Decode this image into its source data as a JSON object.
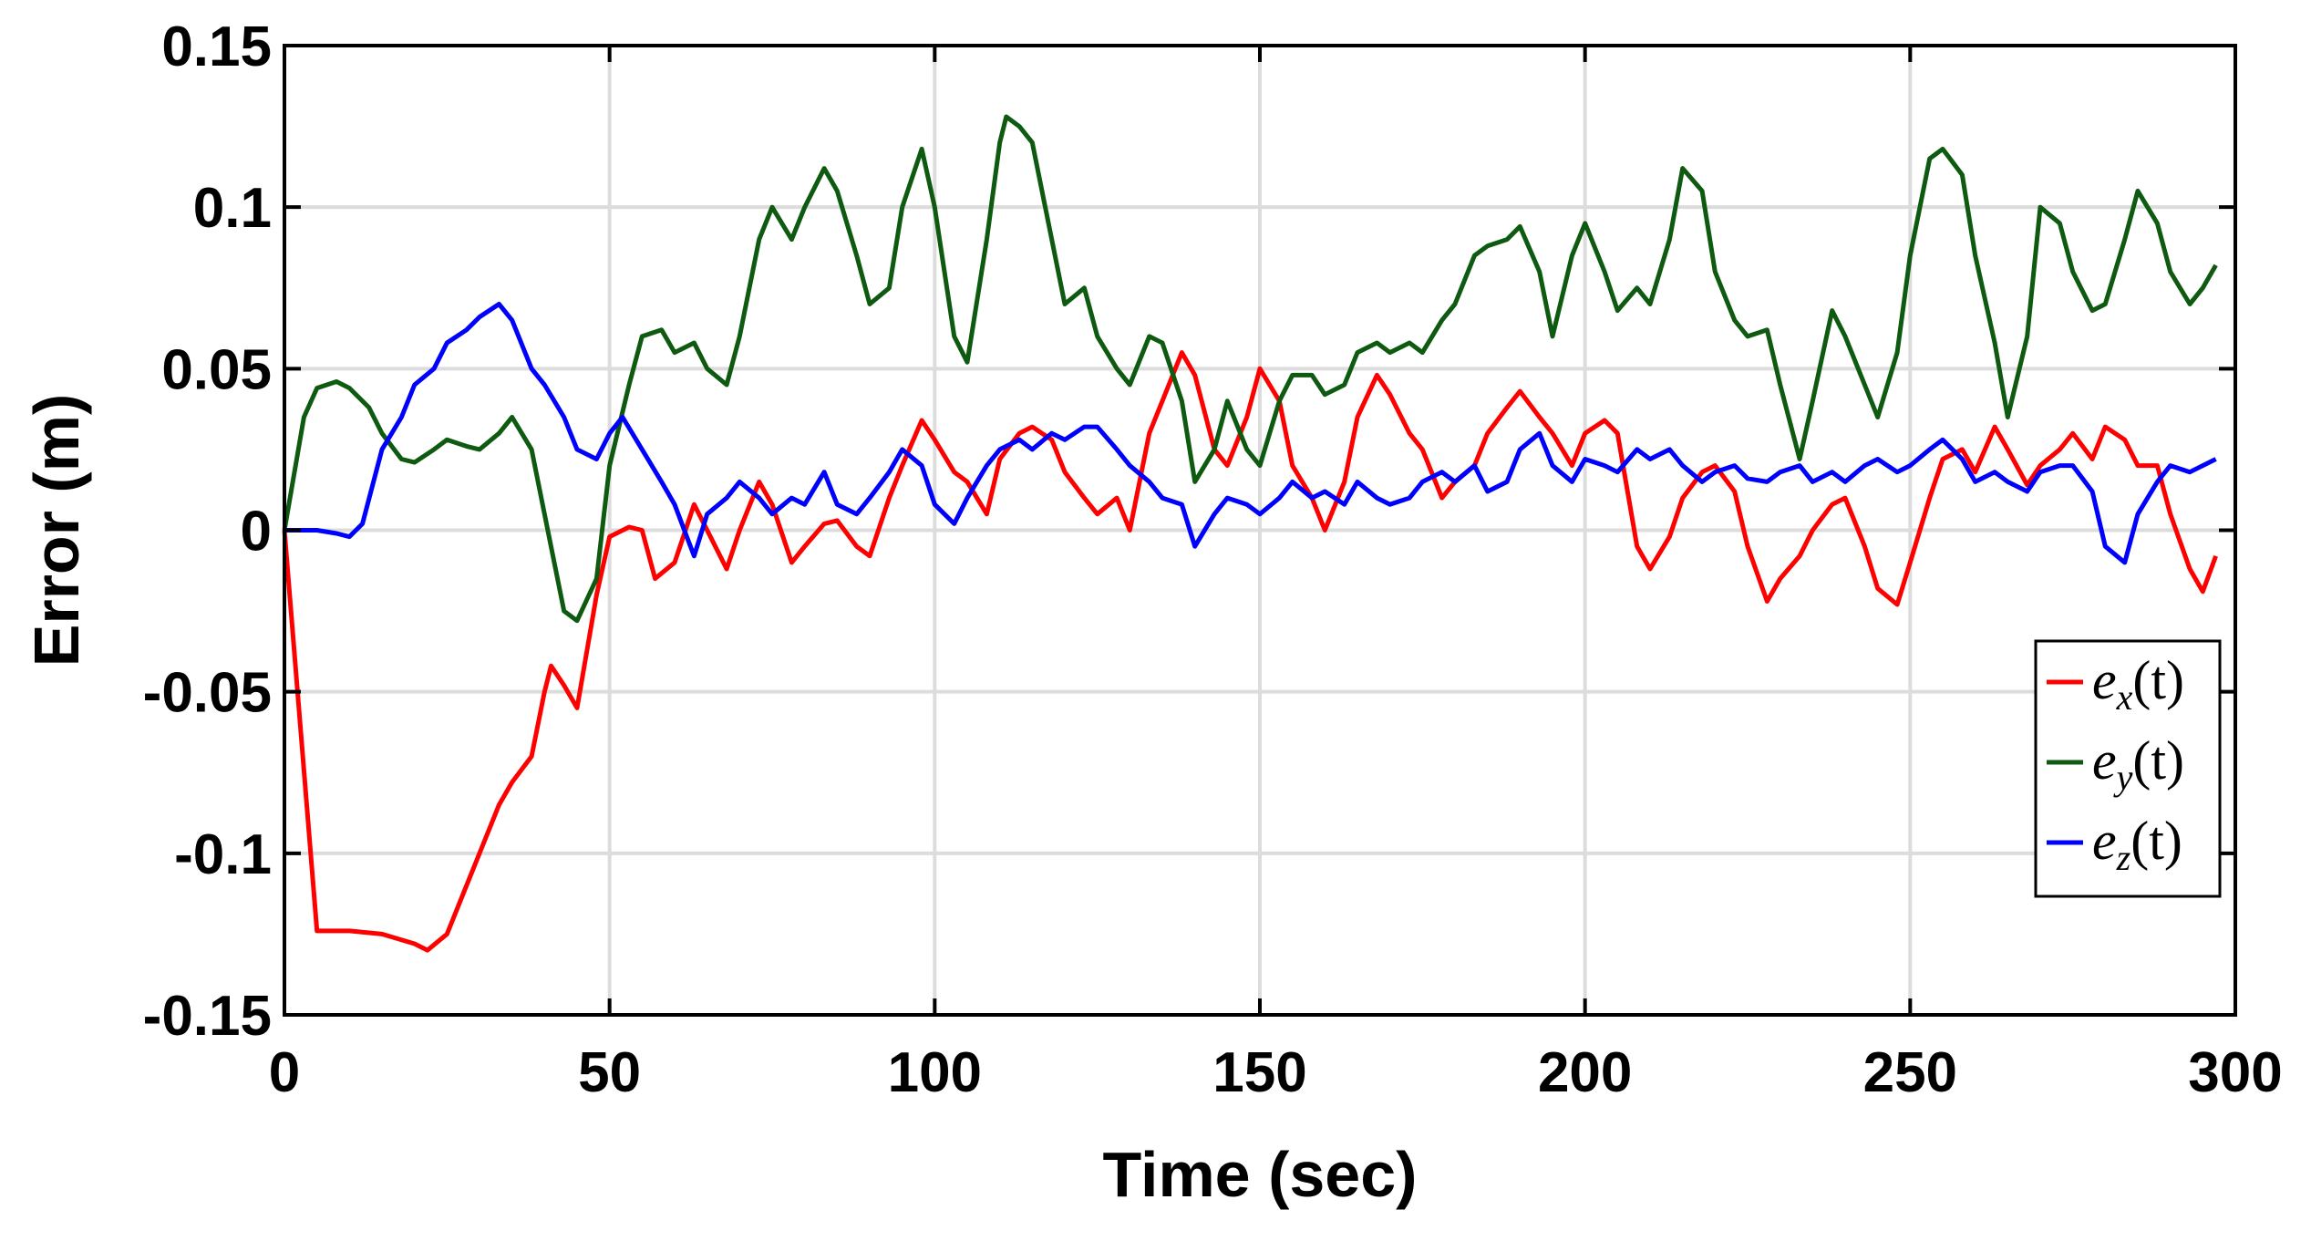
{
  "chart_data": {
    "type": "line",
    "title": "",
    "xlabel": "Time (sec)",
    "ylabel": "Error (m)",
    "xlim": [
      0,
      300
    ],
    "ylim": [
      -0.15,
      0.15
    ],
    "grid": true,
    "legend_position": "right",
    "xticks": [
      0,
      50,
      100,
      150,
      200,
      250,
      300
    ],
    "xtick_labels": [
      "0",
      "50",
      "100",
      "150",
      "200",
      "250",
      "300"
    ],
    "yticks": [
      0.15,
      0.1,
      0.05,
      0,
      -0.05,
      -0.1,
      -0.15
    ],
    "ytick_labels": [
      "0.15",
      "0.1",
      "0.05",
      "0",
      "-0.05",
      "-0.1",
      "-0.15"
    ],
    "series": [
      {
        "name": "e_x(t)",
        "legend_main": "e",
        "legend_sub": "x",
        "legend_tail": "(t)",
        "color": "#ff0000",
        "x": [
          0,
          5,
          10,
          15,
          20,
          22,
          25,
          28,
          30,
          33,
          35,
          38,
          40,
          41,
          43,
          45,
          48,
          50,
          53,
          55,
          57,
          60,
          63,
          65,
          68,
          70,
          73,
          75,
          78,
          80,
          83,
          85,
          88,
          90,
          93,
          95,
          98,
          100,
          103,
          105,
          108,
          110,
          113,
          115,
          118,
          120,
          123,
          125,
          128,
          130,
          133,
          135,
          138,
          140,
          143,
          145,
          148,
          150,
          153,
          155,
          158,
          160,
          163,
          165,
          168,
          170,
          173,
          175,
          178,
          180,
          183,
          185,
          188,
          190,
          193,
          195,
          198,
          200,
          203,
          205,
          208,
          210,
          213,
          215,
          218,
          220,
          223,
          225,
          228,
          230,
          233,
          235,
          238,
          240,
          243,
          245,
          248,
          250,
          253,
          255,
          258,
          260,
          263,
          265,
          268,
          270,
          273,
          275,
          278,
          280,
          283,
          285,
          288,
          290,
          293,
          295,
          297
        ],
        "y": [
          0,
          -0.124,
          -0.124,
          -0.125,
          -0.128,
          -0.13,
          -0.125,
          -0.11,
          -0.1,
          -0.085,
          -0.078,
          -0.07,
          -0.05,
          -0.042,
          -0.048,
          -0.055,
          -0.02,
          -0.002,
          0.001,
          0,
          -0.015,
          -0.01,
          0.008,
          0,
          -0.012,
          0,
          0.015,
          0.008,
          -0.01,
          -0.005,
          0.002,
          0.003,
          -0.005,
          -0.008,
          0.01,
          0.02,
          0.034,
          0.028,
          0.018,
          0.015,
          0.005,
          0.022,
          0.03,
          0.032,
          0.028,
          0.018,
          0.01,
          0.005,
          0.01,
          0,
          0.03,
          0.04,
          0.055,
          0.048,
          0.025,
          0.02,
          0.035,
          0.05,
          0.04,
          0.02,
          0.01,
          0,
          0.015,
          0.035,
          0.048,
          0.042,
          0.03,
          0.025,
          0.01,
          0.015,
          0.02,
          0.03,
          0.038,
          0.043,
          0.035,
          0.03,
          0.02,
          0.03,
          0.034,
          0.03,
          -0.005,
          -0.012,
          -0.002,
          0.01,
          0.018,
          0.02,
          0.012,
          -0.005,
          -0.022,
          -0.015,
          -0.008,
          0,
          0.008,
          0.01,
          -0.005,
          -0.018,
          -0.023,
          -0.01,
          0.01,
          0.022,
          0.025,
          0.018,
          0.032,
          0.025,
          0.014,
          0.02,
          0.025,
          0.03,
          0.022,
          0.032,
          0.028,
          0.02,
          0.02,
          0.005,
          -0.012,
          -0.019,
          -0.008
        ]
      },
      {
        "name": "e_y(t)",
        "legend_main": "e",
        "legend_sub": "y",
        "legend_tail": "(t)",
        "color": "#0d5a10",
        "x": [
          0,
          3,
          5,
          8,
          10,
          13,
          15,
          18,
          20,
          23,
          25,
          28,
          30,
          33,
          35,
          38,
          40,
          43,
          45,
          48,
          50,
          53,
          55,
          58,
          60,
          63,
          65,
          68,
          70,
          73,
          75,
          78,
          80,
          83,
          85,
          88,
          90,
          93,
          95,
          98,
          100,
          103,
          105,
          108,
          110,
          111,
          113,
          115,
          118,
          120,
          123,
          125,
          128,
          130,
          133,
          135,
          138,
          140,
          143,
          145,
          148,
          150,
          153,
          155,
          158,
          160,
          163,
          165,
          168,
          170,
          173,
          175,
          178,
          180,
          183,
          185,
          188,
          190,
          193,
          195,
          198,
          200,
          203,
          205,
          208,
          210,
          213,
          215,
          218,
          220,
          223,
          225,
          228,
          230,
          233,
          235,
          238,
          240,
          243,
          245,
          248,
          250,
          253,
          255,
          258,
          260,
          263,
          265,
          268,
          270,
          273,
          275,
          278,
          280,
          283,
          285,
          288,
          290,
          293,
          295,
          297
        ],
        "y": [
          0,
          0.035,
          0.044,
          0.046,
          0.044,
          0.038,
          0.03,
          0.022,
          0.021,
          0.025,
          0.028,
          0.026,
          0.025,
          0.03,
          0.035,
          0.025,
          0.005,
          -0.025,
          -0.028,
          -0.015,
          0.02,
          0.045,
          0.06,
          0.062,
          0.055,
          0.058,
          0.05,
          0.045,
          0.06,
          0.09,
          0.1,
          0.09,
          0.1,
          0.112,
          0.105,
          0.085,
          0.07,
          0.075,
          0.1,
          0.118,
          0.1,
          0.06,
          0.052,
          0.09,
          0.12,
          0.128,
          0.125,
          0.12,
          0.09,
          0.07,
          0.075,
          0.06,
          0.05,
          0.045,
          0.06,
          0.058,
          0.04,
          0.015,
          0.025,
          0.04,
          0.025,
          0.02,
          0.04,
          0.048,
          0.048,
          0.042,
          0.045,
          0.055,
          0.058,
          0.055,
          0.058,
          0.055,
          0.065,
          0.07,
          0.085,
          0.088,
          0.09,
          0.094,
          0.08,
          0.06,
          0.085,
          0.095,
          0.08,
          0.068,
          0.075,
          0.07,
          0.09,
          0.112,
          0.105,
          0.08,
          0.065,
          0.06,
          0.062,
          0.045,
          0.022,
          0.04,
          0.068,
          0.06,
          0.045,
          0.035,
          0.055,
          0.085,
          0.115,
          0.118,
          0.11,
          0.085,
          0.058,
          0.035,
          0.06,
          0.1,
          0.095,
          0.08,
          0.068,
          0.07,
          0.09,
          0.105,
          0.095,
          0.08,
          0.07,
          0.075,
          0.082
        ]
      },
      {
        "name": "e_z(t)",
        "legend_main": "e",
        "legend_sub": "z",
        "legend_tail": "(t)",
        "color": "#0000ff",
        "x": [
          0,
          5,
          8,
          10,
          12,
          15,
          18,
          20,
          23,
          25,
          28,
          30,
          33,
          35,
          38,
          40,
          43,
          45,
          48,
          50,
          52,
          55,
          58,
          60,
          63,
          65,
          68,
          70,
          73,
          75,
          78,
          80,
          83,
          85,
          88,
          90,
          93,
          95,
          98,
          100,
          103,
          105,
          108,
          110,
          113,
          115,
          118,
          120,
          123,
          125,
          128,
          130,
          133,
          135,
          138,
          140,
          143,
          145,
          148,
          150,
          153,
          155,
          158,
          160,
          163,
          165,
          168,
          170,
          173,
          175,
          178,
          180,
          183,
          185,
          188,
          190,
          193,
          195,
          198,
          200,
          203,
          205,
          208,
          210,
          213,
          215,
          218,
          220,
          223,
          225,
          228,
          230,
          233,
          235,
          238,
          240,
          243,
          245,
          248,
          250,
          253,
          255,
          258,
          260,
          263,
          265,
          268,
          270,
          273,
          275,
          278,
          280,
          283,
          285,
          288,
          290,
          293,
          295,
          297
        ],
        "y": [
          0,
          0,
          -0.001,
          -0.002,
          0.002,
          0.025,
          0.035,
          0.045,
          0.05,
          0.058,
          0.062,
          0.066,
          0.07,
          0.065,
          0.05,
          0.045,
          0.035,
          0.025,
          0.022,
          0.03,
          0.035,
          0.025,
          0.015,
          0.008,
          -0.008,
          0.005,
          0.01,
          0.015,
          0.01,
          0.005,
          0.01,
          0.008,
          0.018,
          0.008,
          0.005,
          0.01,
          0.018,
          0.025,
          0.02,
          0.008,
          0.002,
          0.01,
          0.02,
          0.025,
          0.028,
          0.025,
          0.03,
          0.028,
          0.032,
          0.032,
          0.025,
          0.02,
          0.015,
          0.01,
          0.008,
          -0.005,
          0.005,
          0.01,
          0.008,
          0.005,
          0.01,
          0.015,
          0.01,
          0.012,
          0.008,
          0.015,
          0.01,
          0.008,
          0.01,
          0.015,
          0.018,
          0.015,
          0.02,
          0.012,
          0.015,
          0.025,
          0.03,
          0.02,
          0.015,
          0.022,
          0.02,
          0.018,
          0.025,
          0.022,
          0.025,
          0.02,
          0.015,
          0.018,
          0.02,
          0.016,
          0.015,
          0.018,
          0.02,
          0.015,
          0.018,
          0.015,
          0.02,
          0.022,
          0.018,
          0.02,
          0.025,
          0.028,
          0.022,
          0.015,
          0.018,
          0.015,
          0.012,
          0.018,
          0.02,
          0.02,
          0.012,
          -0.005,
          -0.01,
          0.005,
          0.015,
          0.02,
          0.018,
          0.02,
          0.022
        ]
      }
    ]
  }
}
